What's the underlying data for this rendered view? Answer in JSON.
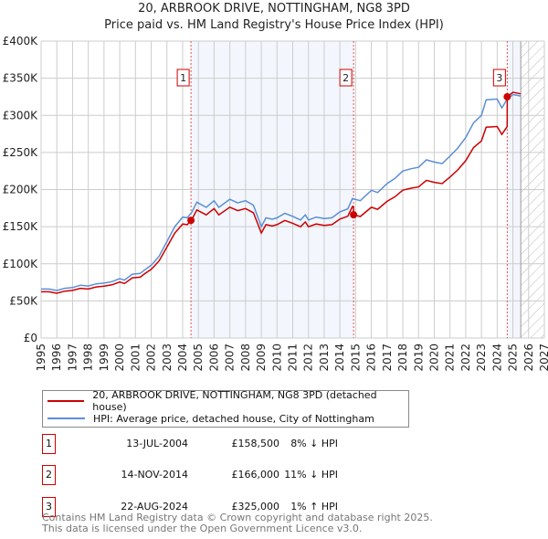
{
  "chart_data": {
    "type": "line",
    "title": "20, ARBROOK DRIVE, NOTTINGHAM, NG8 3PD",
    "subtitle": "Price paid vs. HM Land Registry's House Price Index (HPI)",
    "xlim": [
      1995,
      2027
    ],
    "ylim": [
      0,
      400000
    ],
    "grid": true,
    "y_ticks": [
      0,
      50000,
      100000,
      150000,
      200000,
      250000,
      300000,
      350000,
      400000
    ],
    "y_tick_labels": [
      "£0",
      "£50K",
      "£100K",
      "£150K",
      "£200K",
      "£250K",
      "£300K",
      "£350K",
      "£400K"
    ],
    "x_tick_labels": [
      "1995",
      "1996",
      "1997",
      "1998",
      "1999",
      "2000",
      "2001",
      "2002",
      "2003",
      "2004",
      "2005",
      "2006",
      "2007",
      "2008",
      "2009",
      "2010",
      "2011",
      "2012",
      "2013",
      "2014",
      "2015",
      "2016",
      "2017",
      "2018",
      "2019",
      "2020",
      "2021",
      "2022",
      "2023",
      "2024",
      "2025",
      "2026",
      "2027"
    ],
    "data_end": 2025.5,
    "series": [
      {
        "name": "HPI: Average price, detached house, City of Nottingham",
        "color": "#5b8fd6",
        "x": [
          1995.0,
          1995.5,
          1996.0,
          1996.5,
          1997.0,
          1997.5,
          1998.0,
          1998.5,
          1999.0,
          1999.5,
          2000.0,
          2000.3,
          2000.8,
          2001.3,
          2001.6,
          2002.0,
          2002.5,
          2003.0,
          2003.5,
          2004.0,
          2004.3,
          2004.6,
          2004.9,
          2005.5,
          2006.0,
          2006.3,
          2007.0,
          2007.5,
          2008.0,
          2008.5,
          2009.0,
          2009.3,
          2009.7,
          2010.0,
          2010.5,
          2011.0,
          2011.5,
          2011.8,
          2012.0,
          2012.5,
          2013.0,
          2013.5,
          2014.0,
          2014.5,
          2014.8,
          2015.3,
          2016.0,
          2016.4,
          2017.0,
          2017.5,
          2018.0,
          2018.5,
          2019.0,
          2019.5,
          2020.0,
          2020.5,
          2021.0,
          2021.5,
          2022.0,
          2022.5,
          2023.0,
          2023.3,
          2024.0,
          2024.3,
          2024.64,
          2025.0,
          2025.5
        ],
        "y": [
          66000,
          66000,
          64000,
          67000,
          68000,
          71000,
          70000,
          73000,
          74000,
          76000,
          80000,
          78000,
          86000,
          87000,
          92000,
          98000,
          110000,
          130000,
          150000,
          163000,
          162000,
          170000,
          183000,
          176000,
          185000,
          176000,
          187000,
          182000,
          185000,
          179000,
          150000,
          162000,
          160000,
          162000,
          168000,
          164000,
          159000,
          166000,
          159000,
          163000,
          161000,
          162000,
          170000,
          174000,
          188000,
          185000,
          199000,
          196000,
          208000,
          215000,
          225000,
          228000,
          230000,
          240000,
          237000,
          235000,
          245000,
          256000,
          270000,
          290000,
          300000,
          321000,
          322000,
          310000,
          322000,
          328000,
          326000
        ]
      },
      {
        "name": "20, ARBROOK DRIVE, NOTTINGHAM, NG8 3PD (detached house)",
        "color": "#cc0000",
        "derived_from": "sales indexed by HPI"
      }
    ],
    "sales": [
      {
        "id": "1",
        "x": 2004.53,
        "date": "13-JUL-2004",
        "price": 158500,
        "price_label": "£158,500",
        "hpi_diff": "8% ↓ HPI"
      },
      {
        "id": "2",
        "x": 2014.87,
        "date": "14-NOV-2014",
        "price": 166000,
        "price_label": "£166,000",
        "hpi_diff": "11% ↓ HPI"
      },
      {
        "id": "3",
        "x": 2024.64,
        "date": "22-AUG-2024",
        "price": 325000,
        "price_label": "£325,000",
        "hpi_diff": "1% ↑ HPI"
      }
    ],
    "legend": [
      "20, ARBROOK DRIVE, NOTTINGHAM, NG8 3PD (detached house)",
      "HPI: Average price, detached house, City of Nottingham"
    ],
    "legend_position": "below"
  },
  "footer": {
    "line1": "Contains HM Land Registry data © Crown copyright and database right 2025.",
    "line2": "This data is licensed under the Open Government Licence v3.0."
  }
}
